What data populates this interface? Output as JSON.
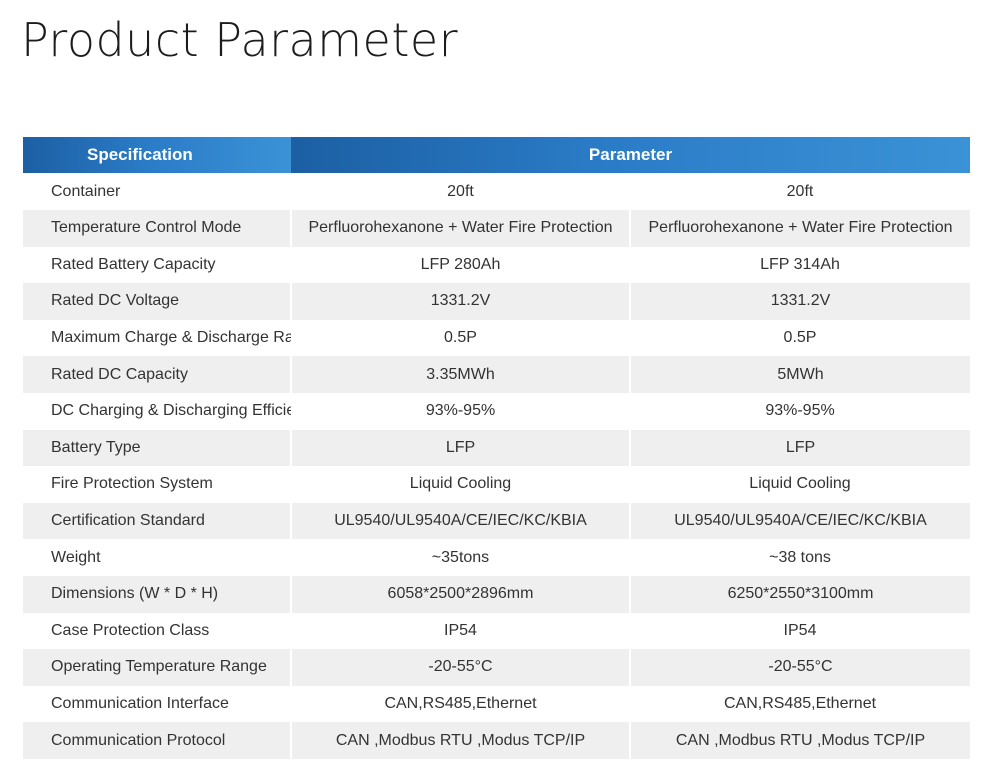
{
  "page": {
    "title": "Product Parameter"
  },
  "table": {
    "headers": {
      "specification": "Specification",
      "parameter": "Parameter"
    },
    "rows": [
      {
        "spec": "Container",
        "v1": "20ft",
        "v2": "20ft"
      },
      {
        "spec": "Temperature Control Mode",
        "v1": "Perfluorohexanone + Water Fire Protection",
        "v2": "Perfluorohexanone + Water Fire Protection"
      },
      {
        "spec": "Rated Battery Capacity",
        "v1": "LFP 280Ah",
        "v2": "LFP 314Ah"
      },
      {
        "spec": "Rated DC Voltage",
        "v1": "1331.2V",
        "v2": "1331.2V"
      },
      {
        "spec": "Maximum Charge & Discharge Ratio",
        "v1": "0.5P",
        "v2": "0.5P"
      },
      {
        "spec": "Rated DC Capacity",
        "v1": "3.35MWh",
        "v2": "5MWh"
      },
      {
        "spec": "DC Charging & Discharging Efficiency",
        "v1": "93%-95%",
        "v2": "93%-95%"
      },
      {
        "spec": "Battery Type",
        "v1": "LFP",
        "v2": "LFP"
      },
      {
        "spec": "Fire Protection System",
        "v1": "Liquid Cooling",
        "v2": "Liquid Cooling"
      },
      {
        "spec": "Certification Standard",
        "v1": "UL9540/UL9540A/CE/IEC/KC/KBIA",
        "v2": "UL9540/UL9540A/CE/IEC/KC/KBIA"
      },
      {
        "spec": "Weight",
        "v1": "~35tons",
        "v2": "~38 tons"
      },
      {
        "spec": "Dimensions (W * D * H)",
        "v1": "6058*2500*2896mm",
        "v2": "6250*2550*3100mm"
      },
      {
        "spec": "Case Protection Class",
        "v1": "IP54",
        "v2": "IP54"
      },
      {
        "spec": "Operating Temperature Range",
        "v1": "-20-55°C",
        "v2": "-20-55°C"
      },
      {
        "spec": "Communication Interface",
        "v1": "CAN,RS485,Ethernet",
        "v2": "CAN,RS485,Ethernet"
      },
      {
        "spec": "Communication Protocol",
        "v1": "CAN ,Modbus RTU ,Modus TCP/IP",
        "v2": "CAN ,Modbus RTU ,Modus TCP/IP"
      }
    ]
  }
}
